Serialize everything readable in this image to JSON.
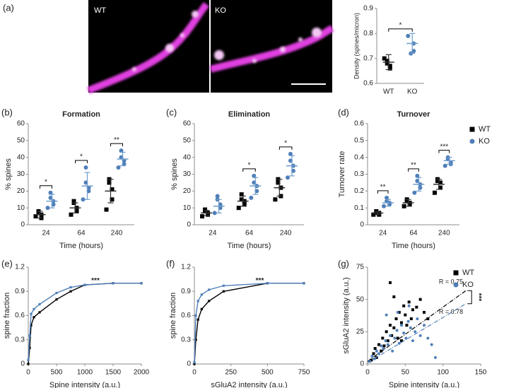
{
  "image": {
    "panel": "(a)",
    "labels": [
      "WT",
      "KO"
    ]
  },
  "chart_data": [
    {
      "type": "dotplot",
      "ylabel": "Density (spines/micron)",
      "categories": [
        "WT",
        "KO"
      ],
      "ylim": [
        0.6,
        0.9
      ],
      "yticks": [
        0.6,
        0.7,
        0.8,
        0.9
      ],
      "significance": "*",
      "series": [
        {
          "color": "#000000",
          "mean_color": "#333333",
          "marker": "square",
          "points": [
            [
              0.7,
              0.67,
              0.66,
              0.69,
              0.68
            ],
            null
          ],
          "means": [
            0.685,
            null
          ],
          "errors": [
            0.03,
            null
          ]
        },
        {
          "color": "#4f7fb8",
          "mean_color": "#6f9ccc",
          "marker": "circle",
          "points": [
            null,
            [
              0.79,
              0.76,
              0.73,
              0.72
            ]
          ],
          "means": [
            null,
            0.76
          ],
          "errors": [
            null,
            0.04
          ]
        }
      ]
    },
    {
      "type": "dotplot",
      "panel": "(b)",
      "title": "Formation",
      "xlabel": "Time (hours)",
      "ylabel": "% spines",
      "categories": [
        "24",
        "64",
        "240"
      ],
      "ylim": [
        0,
        60
      ],
      "yticks": [
        0,
        10,
        20,
        30,
        40,
        50,
        60
      ],
      "significance": [
        "*",
        "*",
        "**"
      ],
      "series": [
        {
          "color": "#000000",
          "mean_color": "#333333",
          "marker": "square",
          "points": [
            [
              5,
              4,
              6,
              7,
              8
            ],
            [
              6,
              8,
              10,
              13,
              14
            ],
            [
              9,
              15,
              21,
              25,
              27
            ]
          ],
          "means": [
            6,
            10,
            20
          ],
          "errors": [
            2,
            3,
            7
          ]
        },
        {
          "color": "#4f7fb8",
          "mean_color": "#6f9ccc",
          "marker": "circle",
          "points": [
            [
              10,
              12,
              14,
              16,
              19
            ],
            [
              15,
              20,
              22,
              25,
              34
            ],
            [
              34,
              36,
              38,
              40,
              44
            ]
          ],
          "means": [
            14,
            23,
            39
          ],
          "errors": [
            4,
            8,
            4
          ]
        }
      ]
    },
    {
      "type": "dotplot",
      "panel": "(c)",
      "title": "Elimination",
      "xlabel": "Time (hours)",
      "ylabel": "% spines",
      "categories": [
        "24",
        "64",
        "240"
      ],
      "ylim": [
        0,
        60
      ],
      "yticks": [
        0,
        10,
        20,
        30,
        40,
        50,
        60
      ],
      "significance": [
        null,
        "*",
        "*"
      ],
      "series": [
        {
          "color": "#000000",
          "mean_color": "#333333",
          "marker": "square",
          "points": [
            [
              5,
              6,
              7,
              8,
              9
            ],
            [
              10,
              12,
              14,
              15,
              18
            ],
            [
              15,
              17,
              22,
              25,
              27
            ]
          ],
          "means": [
            7,
            14,
            22
          ],
          "errors": [
            1.5,
            3,
            5
          ]
        },
        {
          "color": "#4f7fb8",
          "mean_color": "#6f9ccc",
          "marker": "circle",
          "points": [
            [
              7,
              10,
              12,
              15,
              17
            ],
            [
              16,
              20,
              23,
              25,
              29
            ],
            [
              28,
              32,
              35,
              38,
              42
            ]
          ],
          "means": [
            11,
            23,
            35
          ],
          "errors": [
            4,
            5,
            6
          ]
        }
      ]
    },
    {
      "type": "dotplot",
      "panel": "(d)",
      "title": "Turnover",
      "xlabel": "Time (hours)",
      "ylabel": "Turnover rate",
      "categories": [
        "24",
        "64",
        "240"
      ],
      "ylim": [
        0,
        0.6
      ],
      "yticks": [
        0,
        0.1,
        0.2,
        0.3,
        0.4,
        0.5,
        0.6
      ],
      "significance": [
        "**",
        "**",
        "***"
      ],
      "series": [
        {
          "name": "WT",
          "color": "#000000",
          "mean_color": "#333333",
          "marker": "square",
          "points": [
            [
              0.06,
              0.06,
              0.07,
              0.07,
              0.08
            ],
            [
              0.11,
              0.12,
              0.13,
              0.14,
              0.15
            ],
            [
              0.19,
              0.22,
              0.25,
              0.26,
              0.27
            ]
          ],
          "means": [
            0.07,
            0.13,
            0.24
          ],
          "errors": [
            0.01,
            0.02,
            0.03
          ]
        },
        {
          "name": "KO",
          "color": "#4f7fb8",
          "mean_color": "#6f9ccc",
          "marker": "circle",
          "points": [
            [
              0.11,
              0.12,
              0.13,
              0.14,
              0.16
            ],
            [
              0.19,
              0.22,
              0.24,
              0.26,
              0.29
            ],
            [
              0.35,
              0.36,
              0.37,
              0.39,
              0.4
            ]
          ],
          "means": [
            0.13,
            0.24,
            0.38
          ],
          "errors": [
            0.02,
            0.04,
            0.02
          ]
        }
      ]
    },
    {
      "type": "line",
      "panel": "(e)",
      "xlabel": "Spine intensity (a.u.)",
      "ylabel": "spine fraction",
      "annotation": "***",
      "xlim": [
        0,
        2000
      ],
      "xticks": [
        0,
        500,
        1000,
        1500,
        2000
      ],
      "ylim": [
        0,
        1.2
      ],
      "yticks": [
        0,
        0.3,
        0.6,
        0.9,
        1.2
      ],
      "series": [
        {
          "color": "#000000",
          "x": [
            0,
            25,
            50,
            100,
            200,
            500,
            750,
            1000,
            1500,
            2000
          ],
          "values": [
            0.0,
            0.2,
            0.48,
            0.58,
            0.64,
            0.8,
            0.9,
            0.98,
            1.0,
            1.0
          ]
        },
        {
          "color": "#4f7fb8",
          "x": [
            0,
            25,
            50,
            100,
            200,
            500,
            750,
            1000,
            1500,
            2000
          ],
          "values": [
            0.05,
            0.35,
            0.62,
            0.68,
            0.74,
            0.88,
            0.95,
            0.98,
            1.0,
            1.0
          ]
        }
      ]
    },
    {
      "type": "line",
      "panel": "(f)",
      "xlabel": "sGluA2 intensity (a.u.)",
      "ylabel": "spine fraction",
      "annotation": "***",
      "xlim": [
        0,
        750
      ],
      "xticks": [
        0,
        250,
        500,
        750
      ],
      "ylim": [
        0,
        1.2
      ],
      "yticks": [
        0,
        0.3,
        0.6,
        0.9,
        1.2
      ],
      "series": [
        {
          "color": "#000000",
          "x": [
            0,
            10,
            25,
            50,
            100,
            200,
            500,
            750
          ],
          "values": [
            0.0,
            0.3,
            0.55,
            0.68,
            0.78,
            0.9,
            1.0,
            1.0
          ]
        },
        {
          "color": "#4f7fb8",
          "x": [
            0,
            10,
            25,
            50,
            100,
            200,
            500,
            750
          ],
          "values": [
            0.02,
            0.6,
            0.78,
            0.86,
            0.92,
            0.97,
            1.0,
            1.0
          ]
        }
      ]
    },
    {
      "type": "scatter",
      "panel": "(g)",
      "xlabel": "Spine intensity (a.u.)",
      "ylabel": "sGluA2 intensity (a.u.)",
      "annotation": "***",
      "xlim": [
        0,
        150
      ],
      "xticks": [
        0,
        50,
        100,
        150
      ],
      "ylim": [
        0,
        75
      ],
      "yticks": [
        0,
        25,
        50,
        75
      ],
      "series": [
        {
          "name": "WT",
          "color": "#000000",
          "marker": "square",
          "x": [
            5,
            8,
            10,
            12,
            15,
            18,
            20,
            22,
            25,
            27,
            30,
            32,
            35,
            38,
            40,
            42,
            45,
            48,
            50,
            52,
            55,
            58,
            60,
            65,
            70,
            75,
            80,
            30,
            35,
            45
          ],
          "values": [
            3,
            8,
            12,
            5,
            15,
            10,
            20,
            14,
            25,
            18,
            30,
            22,
            28,
            35,
            20,
            40,
            32,
            45,
            38,
            30,
            48,
            35,
            42,
            44,
            50,
            40,
            35,
            63,
            52,
            18
          ],
          "fit": {
            "slope": 0.42,
            "intercept": 2,
            "label": "R = 0.75"
          }
        },
        {
          "name": "KO",
          "color": "#4f7fb8",
          "marker": "circle",
          "x": [
            3,
            6,
            9,
            12,
            15,
            18,
            21,
            24,
            27,
            30,
            33,
            36,
            39,
            42,
            45,
            48,
            51,
            54,
            57,
            60,
            63,
            66,
            70,
            75,
            80,
            85,
            90,
            25,
            40,
            55
          ],
          "values": [
            2,
            6,
            4,
            10,
            8,
            14,
            12,
            18,
            15,
            22,
            10,
            20,
            26,
            16,
            30,
            24,
            20,
            33,
            28,
            18,
            25,
            35,
            22,
            30,
            20,
            15,
            5,
            38,
            40,
            45
          ],
          "fit": {
            "slope": 0.35,
            "intercept": 1,
            "label": "R = 0.78"
          }
        }
      ]
    }
  ]
}
